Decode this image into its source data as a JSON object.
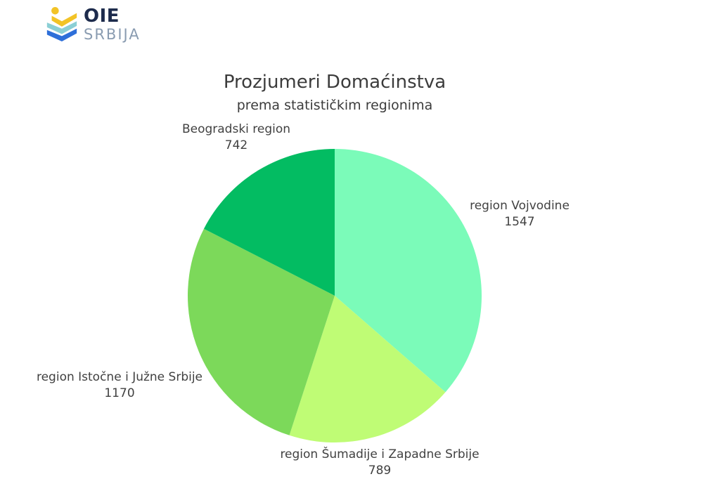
{
  "page": {
    "background": "#FFFFFF"
  },
  "logo": {
    "brand": "OIE",
    "brand_sub": "SRBIJA",
    "icon": "oie-chevrons-person-icon",
    "colors": {
      "yellow": "#F2C327",
      "teal": "#8BCFD5",
      "blue": "#2E6FD9",
      "navy": "#1D2B4C",
      "gray_blue": "#8A9CB1"
    }
  },
  "chart_data": {
    "type": "pie",
    "title": "Prozjumeri Domaćinstva",
    "subtitle": "prema statističkim regionima",
    "direction": "clockwise",
    "start_angle_deg": 0,
    "legend_position": "labels-around-pie",
    "label_color": "#414141",
    "slices": [
      {
        "label": "region Vojvodine",
        "value": 1547,
        "color": "#7BFBB9"
      },
      {
        "label": "region Šumadije i Zapadne Srbije",
        "value": 789,
        "color": "#BFFC75"
      },
      {
        "label": "region Istočne i Južne Srbije",
        "value": 1170,
        "color": "#7CD95A"
      },
      {
        "label": "Beogradski region",
        "value": 742,
        "color": "#03BC62"
      }
    ]
  }
}
